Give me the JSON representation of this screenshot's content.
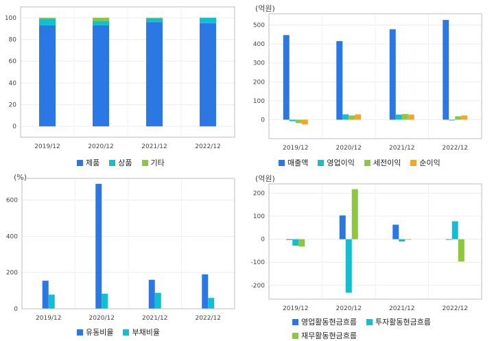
{
  "charts": [
    {
      "id": "composition",
      "unit": "",
      "chart_data": {
        "type": "bar",
        "stacked": true,
        "categories": [
          "2019/12",
          "2020/12",
          "2021/12",
          "2022/12"
        ],
        "series": [
          {
            "name": "제품",
            "color": "#2b78e4",
            "values": [
              93,
              93,
              96,
              95
            ]
          },
          {
            "name": "상품",
            "color": "#12bfd0",
            "values": [
              6,
              4,
              3.5,
              5
            ]
          },
          {
            "name": "기타",
            "color": "#8dc63f",
            "values": [
              1,
              3,
              0.5,
              0
            ]
          }
        ],
        "ylim": [
          -10,
          110
        ],
        "yticks": [
          0,
          20,
          40,
          60,
          80,
          100
        ],
        "grid": true,
        "legend": "bottom"
      }
    },
    {
      "id": "profit",
      "unit": "(억원)",
      "chart_data": {
        "type": "bar",
        "categories": [
          "2019/12",
          "2020/12",
          "2021/12",
          "2022/12"
        ],
        "series": [
          {
            "name": "매출액",
            "color": "#2b78e4",
            "values": [
              447,
              415,
              478,
              527
            ]
          },
          {
            "name": "영업이익",
            "color": "#12bfd0",
            "values": [
              -8,
              28,
              27,
              -4
            ]
          },
          {
            "name": "세전이익",
            "color": "#8dc63f",
            "values": [
              -18,
              22,
              30,
              18
            ]
          },
          {
            "name": "순이익",
            "color": "#f5a623",
            "values": [
              -25,
              28,
              27,
              22
            ]
          }
        ],
        "ylim": [
          -100,
          560
        ],
        "yticks": [
          0,
          100,
          200,
          300,
          400,
          500
        ],
        "grid": true,
        "legend": "bottom"
      }
    },
    {
      "id": "ratio",
      "unit": "(%)",
      "chart_data": {
        "type": "bar",
        "categories": [
          "2019/12",
          "2020/12",
          "2021/12",
          "2022/12"
        ],
        "series": [
          {
            "name": "유동비율",
            "color": "#2b78e4",
            "values": [
              155,
              690,
              160,
              190
            ]
          },
          {
            "name": "부채비율",
            "color": "#12bfd0",
            "values": [
              78,
              83,
              88,
              60
            ]
          }
        ],
        "ylim": [
          0,
          720
        ],
        "yticks": [
          0,
          200,
          400,
          600
        ],
        "grid": true,
        "legend": "bottom"
      }
    },
    {
      "id": "cashflow",
      "unit": "(억원)",
      "chart_data": {
        "type": "bar",
        "categories": [
          "2019/12",
          "2020/12",
          "2021/12",
          "2022/12"
        ],
        "series": [
          {
            "name": "영업활동현금흐름",
            "color": "#2b78e4",
            "values": [
              -3,
              103,
              63,
              0
            ]
          },
          {
            "name": "투자활동현금흐름",
            "color": "#12bfd0",
            "values": [
              -28,
              -232,
              -10,
              78
            ]
          },
          {
            "name": "재무활동현금흐름",
            "color": "#8dc63f",
            "values": [
              -32,
              217,
              0,
              -97
            ]
          }
        ],
        "ylim": [
          -260,
          240
        ],
        "yticks": [
          -200,
          -100,
          0,
          100,
          200
        ],
        "grid": true,
        "legend": "bottom"
      }
    }
  ]
}
